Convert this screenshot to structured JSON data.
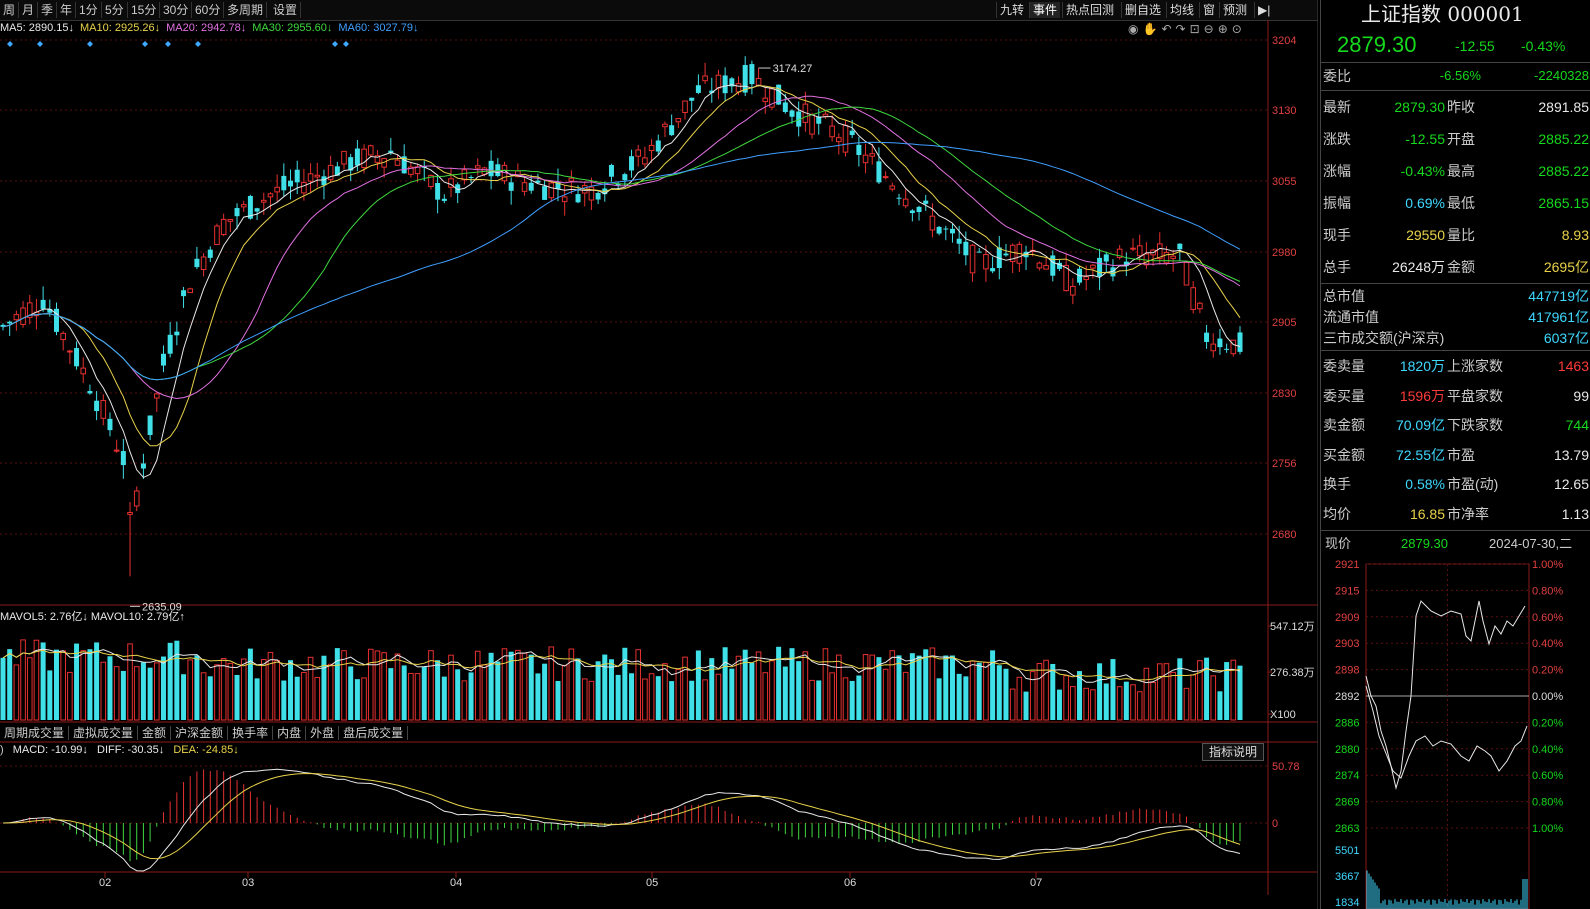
{
  "toolbar": {
    "left": [
      "周",
      "月",
      "季",
      "年",
      "1分",
      "5分",
      "15分",
      "30分",
      "60分",
      "多周期",
      "设置"
    ],
    "right": [
      "九转",
      "事件",
      "热点回测",
      "删自选",
      "均线",
      "窗",
      "预测"
    ]
  },
  "ma_legend": [
    {
      "label": "MA5: 2890.15",
      "color": "#e8e8e8"
    },
    {
      "label": "MA10: 2925.26",
      "color": "#e8d24a"
    },
    {
      "label": "MA20: 2942.78",
      "color": "#e070e0"
    },
    {
      "label": "MA30: 2955.60",
      "color": "#3fd83f"
    },
    {
      "label": "MA60: 3027.79",
      "color": "#3f9fff"
    }
  ],
  "price_axis": [
    "3204",
    "3130",
    "3055",
    "2980",
    "2905",
    "2830",
    "2756",
    "2680"
  ],
  "high_label": "3174.27",
  "low_label": "2635.09",
  "vol_legend": "MAVOL5: 2.76亿↓  MAVOL10: 2.79亿↑",
  "vol_axis": [
    "547.12万",
    "276.38万",
    "X100"
  ],
  "indicator_tabs": [
    "周期成交量",
    "虚拟成交量",
    "金额",
    "沪深金额",
    "换手率",
    "内盘",
    "外盘",
    "盘后成交量"
  ],
  "macd_legend": {
    "macd": "MACD: -10.99↓",
    "diff": "DIFF: -30.35↓",
    "dea": "DEA: -24.85↓"
  },
  "macd_axis": [
    "50.78",
    "0"
  ],
  "indicator_btn": "指标说明",
  "months": [
    "02",
    "03",
    "04",
    "05",
    "06",
    "07"
  ],
  "index": {
    "name": "上证指数",
    "code": "000001",
    "price": "2879.30",
    "change": "-12.55",
    "pct": "-0.43%"
  },
  "quote": {
    "weibi_label": "委比",
    "weibi": "-6.56%",
    "weicha": "-2240328",
    "rows": [
      {
        "l1": "最新",
        "v1": "2879.30",
        "c1": "g",
        "l2": "昨收",
        "v2": "2891.85",
        "c2": "w"
      },
      {
        "l1": "涨跌",
        "v1": "-12.55",
        "c1": "g",
        "l2": "开盘",
        "v2": "2885.22",
        "c2": "g"
      },
      {
        "l1": "涨幅",
        "v1": "-0.43%",
        "c1": "g",
        "l2": "最高",
        "v2": "2885.22",
        "c2": "g"
      },
      {
        "l1": "振幅",
        "v1": "0.69%",
        "c1": "c",
        "l2": "最低",
        "v2": "2865.15",
        "c2": "g"
      },
      {
        "l1": "现手",
        "v1": "29550",
        "c1": "y",
        "l2": "量比",
        "v2": "8.93",
        "c2": "y"
      },
      {
        "l1": "总手",
        "v1": "26248万",
        "c1": "w",
        "l2": "金额",
        "v2": "2695亿",
        "c2": "y"
      }
    ],
    "mv": [
      {
        "l": "总市值",
        "v": "447719亿"
      },
      {
        "l": "流通市值",
        "v": "417961亿"
      },
      {
        "l": "三市成交额(沪深京)",
        "v": "6037亿"
      }
    ],
    "rows2": [
      {
        "l1": "委卖量",
        "v1": "1820万",
        "c1": "c",
        "l2": "上涨家数",
        "v2": "1463",
        "c2": "r"
      },
      {
        "l1": "委买量",
        "v1": "1596万",
        "c1": "r",
        "l2": "平盘家数",
        "v2": "99",
        "c2": "w"
      },
      {
        "l1": "卖金额",
        "v1": "70.09亿",
        "c1": "c",
        "l2": "下跌家数",
        "v2": "744",
        "c2": "g"
      },
      {
        "l1": "买金额",
        "v1": "72.55亿",
        "c1": "c",
        "l2": "市盈",
        "v2": "13.79",
        "c2": "w"
      },
      {
        "l1": "换手",
        "v1": "0.58%",
        "c1": "c",
        "l2": "市盈(动)",
        "v2": "12.65",
        "c2": "w"
      },
      {
        "l1": "均价",
        "v1": "16.85",
        "c1": "y",
        "l2": "市净率",
        "v2": "1.13",
        "c2": "w"
      }
    ]
  },
  "mini": {
    "label": "现价",
    "price": "2879.30",
    "date": "2024-07-30,二",
    "left_axis": [
      "2921",
      "2915",
      "2909",
      "2903",
      "2898",
      "2892",
      "2886",
      "2880",
      "2874",
      "2869",
      "2863",
      "5501",
      "3667",
      "1834"
    ],
    "right_axis": [
      "1.00%",
      "0.80%",
      "0.60%",
      "0.40%",
      "0.20%",
      "0.00%",
      "0.20%",
      "0.40%",
      "0.60%",
      "0.80%",
      "1.00%"
    ]
  }
}
